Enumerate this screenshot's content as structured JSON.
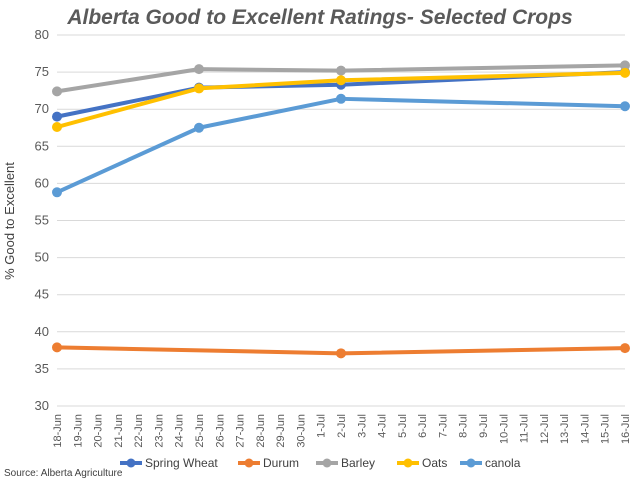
{
  "source_label": "Source: Alberta Agriculture",
  "colors": {
    "spring_wheat": "#4472C4",
    "durum": "#ED7D31",
    "barley": "#A5A5A5",
    "oats": "#FFC000",
    "canola": "#5B9BD5",
    "grid": "#d9d9d9"
  },
  "chart_data": {
    "type": "line",
    "title": "Alberta Good to Excellent Ratings- Selected Crops",
    "xlabel": "",
    "ylabel": "% Good to Excellent",
    "ylim": [
      30,
      80
    ],
    "yticks": [
      30,
      35,
      40,
      45,
      50,
      55,
      60,
      65,
      70,
      75,
      80
    ],
    "grid": true,
    "legend_position": "bottom",
    "categories": [
      "18-Jun",
      "19-Jun",
      "20-Jun",
      "21-Jun",
      "22-Jun",
      "23-Jun",
      "24-Jun",
      "25-Jun",
      "26-Jun",
      "27-Jun",
      "28-Jun",
      "29-Jun",
      "30-Jun",
      "1-Jul",
      "2-Jul",
      "3-Jul",
      "4-Jul",
      "5-Jul",
      "6-Jul",
      "7-Jul",
      "8-Jul",
      "9-Jul",
      "10-Jul",
      "11-Jul",
      "12-Jul",
      "13-Jul",
      "14-Jul",
      "15-Jul",
      "16-Jul"
    ],
    "series": [
      {
        "name": "Spring Wheat",
        "color_key": "spring_wheat",
        "x": [
          "18-Jun",
          "25-Jun",
          "2-Jul",
          "16-Jul"
        ],
        "values": [
          69.0,
          72.9,
          73.3,
          75.0
        ]
      },
      {
        "name": "Durum",
        "color_key": "durum",
        "x": [
          "18-Jun",
          "25-Jun",
          "2-Jul",
          "16-Jul"
        ],
        "values": [
          37.9,
          null,
          37.1,
          37.8
        ]
      },
      {
        "name": "Barley",
        "color_key": "barley",
        "x": [
          "18-Jun",
          "25-Jun",
          "2-Jul",
          "16-Jul"
        ],
        "values": [
          72.4,
          75.4,
          75.2,
          75.9
        ]
      },
      {
        "name": "Oats",
        "color_key": "oats",
        "x": [
          "18-Jun",
          "25-Jun",
          "2-Jul",
          "16-Jul"
        ],
        "values": [
          67.6,
          72.8,
          73.9,
          74.9
        ]
      },
      {
        "name": "canola",
        "color_key": "canola",
        "x": [
          "18-Jun",
          "25-Jun",
          "2-Jul",
          "16-Jul"
        ],
        "values": [
          58.8,
          67.5,
          71.4,
          70.4
        ]
      }
    ]
  }
}
